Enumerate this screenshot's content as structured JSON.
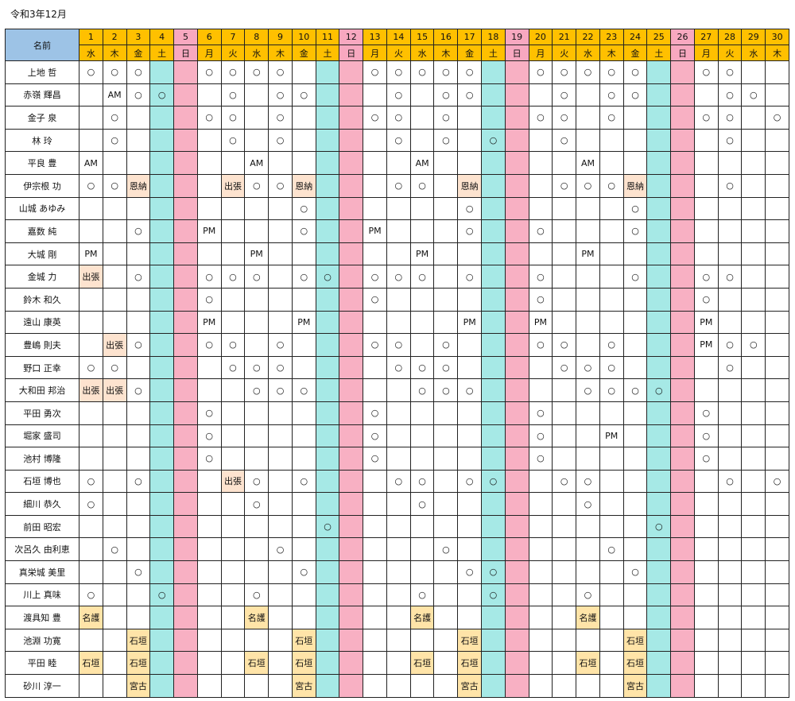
{
  "title": "令和3年12月",
  "name_header": "名前",
  "colors": {
    "weekday_header": "#ffc000",
    "sunday_header": "#f8a8c0",
    "saturday_column": "#a6e9e6",
    "sunday_column": "#f8b0c3",
    "tag_highlight": "#fde3cf",
    "name_header": "#9dc3e6"
  },
  "days": [
    {
      "d": "1",
      "w": "水"
    },
    {
      "d": "2",
      "w": "木"
    },
    {
      "d": "3",
      "w": "金"
    },
    {
      "d": "4",
      "w": "土"
    },
    {
      "d": "5",
      "w": "日"
    },
    {
      "d": "6",
      "w": "月"
    },
    {
      "d": "7",
      "w": "火"
    },
    {
      "d": "8",
      "w": "水"
    },
    {
      "d": "9",
      "w": "木"
    },
    {
      "d": "10",
      "w": "金"
    },
    {
      "d": "11",
      "w": "土"
    },
    {
      "d": "12",
      "w": "日"
    },
    {
      "d": "13",
      "w": "月"
    },
    {
      "d": "14",
      "w": "火"
    },
    {
      "d": "15",
      "w": "水"
    },
    {
      "d": "16",
      "w": "木"
    },
    {
      "d": "17",
      "w": "金"
    },
    {
      "d": "18",
      "w": "土"
    },
    {
      "d": "19",
      "w": "日"
    },
    {
      "d": "20",
      "w": "月"
    },
    {
      "d": "21",
      "w": "火"
    },
    {
      "d": "22",
      "w": "水"
    },
    {
      "d": "23",
      "w": "木"
    },
    {
      "d": "24",
      "w": "金"
    },
    {
      "d": "25",
      "w": "土"
    },
    {
      "d": "26",
      "w": "日"
    },
    {
      "d": "27",
      "w": "月"
    },
    {
      "d": "28",
      "w": "火"
    },
    {
      "d": "29",
      "w": "水"
    },
    {
      "d": "30",
      "w": "木"
    }
  ],
  "rows": [
    {
      "name": "上地 哲",
      "cells": [
        "○",
        "○",
        "○",
        "",
        "",
        "○",
        "○",
        "○",
        "○",
        "",
        "",
        "",
        "○",
        "○",
        "○",
        "○",
        "○",
        "",
        "",
        "○",
        "○",
        "○",
        "○",
        "○",
        "",
        "",
        "○",
        "○",
        "",
        ""
      ]
    },
    {
      "name": "赤嶺 輝昌",
      "cells": [
        "",
        "AM",
        "○",
        "○",
        "",
        "",
        "○",
        "",
        "○",
        "○",
        "",
        "",
        "",
        "○",
        "",
        "○",
        "○",
        "",
        "",
        "",
        "○",
        "",
        "○",
        "○",
        "",
        "",
        "",
        "○",
        "○",
        ""
      ]
    },
    {
      "name": "金子 泉",
      "cells": [
        "",
        "○",
        "",
        "",
        "",
        "○",
        "○",
        "",
        "○",
        "",
        "",
        "",
        "○",
        "○",
        "",
        "○",
        "",
        "",
        "",
        "○",
        "○",
        "",
        "○",
        "",
        "",
        "",
        "○",
        "○",
        "",
        "○"
      ]
    },
    {
      "name": "林 玲",
      "cells": [
        "",
        "○",
        "",
        "",
        "",
        "",
        "○",
        "",
        "○",
        "",
        "",
        "",
        "",
        "○",
        "",
        "○",
        "",
        "○",
        "",
        "",
        "○",
        "",
        "",
        "",
        "",
        "",
        "",
        "○",
        "",
        ""
      ]
    },
    {
      "name": "平良 豊",
      "cells": [
        "AM",
        "",
        "",
        "",
        "",
        "",
        "",
        "AM",
        "",
        "",
        "",
        "",
        "",
        "",
        "AM",
        "",
        "",
        "",
        "",
        "",
        "",
        "AM",
        "",
        "",
        "",
        "",
        "",
        "",
        "",
        ""
      ]
    },
    {
      "name": "伊宗根 功",
      "cells": [
        "○",
        "○",
        "恩納",
        "",
        "",
        "",
        "出張",
        "○",
        "○",
        "恩納",
        "",
        "",
        "",
        "○",
        "○",
        "",
        "恩納",
        "",
        "",
        "",
        "○",
        "○",
        "○",
        "恩納",
        "",
        "",
        "",
        "○",
        "",
        ""
      ]
    },
    {
      "name": "山城 あゆみ",
      "cells": [
        "",
        "",
        "",
        "",
        "",
        "",
        "",
        "",
        "",
        "○",
        "",
        "",
        "",
        "",
        "",
        "",
        "○",
        "",
        "",
        "",
        "",
        "",
        "",
        "○",
        "",
        "",
        "",
        "",
        "",
        ""
      ]
    },
    {
      "name": "嘉数 純",
      "cells": [
        "",
        "",
        "○",
        "",
        "",
        "PM",
        "",
        "",
        "",
        "○",
        "",
        "",
        "PM",
        "",
        "",
        "",
        "○",
        "",
        "",
        "○",
        "",
        "",
        "",
        "○",
        "",
        "",
        "",
        "",
        "",
        ""
      ]
    },
    {
      "name": "大城 剛",
      "cells": [
        "PM",
        "",
        "",
        "",
        "",
        "",
        "",
        "PM",
        "",
        "",
        "",
        "",
        "",
        "",
        "PM",
        "",
        "",
        "",
        "",
        "",
        "",
        "PM",
        "",
        "",
        "",
        "",
        "",
        "",
        "",
        ""
      ]
    },
    {
      "name": "金城 力",
      "cells": [
        "出張",
        "",
        "○",
        "",
        "",
        "○",
        "○",
        "○",
        "",
        "○",
        "○",
        "",
        "○",
        "○",
        "○",
        "",
        "○",
        "",
        "",
        "○",
        "",
        "",
        "",
        "○",
        "",
        "",
        "○",
        "○",
        "",
        ""
      ]
    },
    {
      "name": "鈴木 和久",
      "cells": [
        "",
        "",
        "",
        "",
        "",
        "○",
        "",
        "",
        "",
        "",
        "",
        "",
        "○",
        "",
        "",
        "",
        "",
        "",
        "",
        "○",
        "",
        "",
        "",
        "",
        "",
        "",
        "○",
        "",
        "",
        ""
      ]
    },
    {
      "name": "遠山 康英",
      "cells": [
        "",
        "",
        "",
        "",
        "",
        "PM",
        "",
        "",
        "",
        "PM",
        "",
        "",
        "",
        "",
        "",
        "",
        "PM",
        "",
        "",
        "PM",
        "",
        "",
        "",
        "",
        "",
        "",
        "PM",
        "",
        "",
        ""
      ]
    },
    {
      "name": "豊嶋 則夫",
      "cells": [
        "",
        "出張",
        "○",
        "",
        "",
        "○",
        "○",
        "",
        "○",
        "",
        "",
        "",
        "○",
        "○",
        "",
        "○",
        "",
        "",
        "",
        "○",
        "○",
        "",
        "○",
        "",
        "",
        "",
        "PM",
        "○",
        "○",
        ""
      ]
    },
    {
      "name": "野口 正幸",
      "cells": [
        "○",
        "○",
        "",
        "",
        "",
        "",
        "○",
        "○",
        "○",
        "",
        "",
        "",
        "",
        "○",
        "○",
        "○",
        "",
        "",
        "",
        "",
        "○",
        "○",
        "○",
        "",
        "",
        "",
        "",
        "○",
        "",
        ""
      ]
    },
    {
      "name": "大和田 邦治",
      "cells": [
        "出張",
        "出張",
        "○",
        "",
        "",
        "",
        "",
        "○",
        "○",
        "○",
        "",
        "",
        "",
        "",
        "○",
        "○",
        "○",
        "",
        "",
        "",
        "",
        "○",
        "○",
        "○",
        "○",
        "",
        "",
        "",
        "",
        ""
      ]
    },
    {
      "name": "平田 勇次",
      "cells": [
        "",
        "",
        "",
        "",
        "",
        "○",
        "",
        "",
        "",
        "",
        "",
        "",
        "○",
        "",
        "",
        "",
        "",
        "",
        "",
        "○",
        "",
        "",
        "",
        "",
        "",
        "",
        "○",
        "",
        "",
        ""
      ]
    },
    {
      "name": "堀家 盛司",
      "cells": [
        "",
        "",
        "",
        "",
        "",
        "○",
        "",
        "",
        "",
        "",
        "",
        "",
        "○",
        "",
        "",
        "",
        "",
        "",
        "",
        "○",
        "",
        "",
        "PM",
        "",
        "",
        "",
        "○",
        "",
        "",
        ""
      ]
    },
    {
      "name": "池村 博隆",
      "cells": [
        "",
        "",
        "",
        "",
        "",
        "○",
        "",
        "",
        "",
        "",
        "",
        "",
        "○",
        "",
        "",
        "",
        "",
        "",
        "",
        "○",
        "",
        "",
        "",
        "",
        "",
        "",
        "○",
        "",
        "",
        ""
      ]
    },
    {
      "name": "石垣 博也",
      "cells": [
        "○",
        "",
        "○",
        "",
        "",
        "",
        "出張",
        "○",
        "",
        "○",
        "",
        "",
        "",
        "○",
        "○",
        "",
        "○",
        "○",
        "",
        "",
        "○",
        "○",
        "",
        "",
        "",
        "",
        "",
        "○",
        "",
        "○"
      ]
    },
    {
      "name": "細川 恭久",
      "cells": [
        "○",
        "",
        "",
        "",
        "",
        "",
        "",
        "○",
        "",
        "",
        "",
        "",
        "",
        "",
        "○",
        "",
        "",
        "",
        "",
        "",
        "",
        "○",
        "",
        "",
        "",
        "",
        "",
        "",
        "",
        ""
      ]
    },
    {
      "name": "前田 昭宏",
      "cells": [
        "",
        "",
        "",
        "",
        "",
        "",
        "",
        "",
        "",
        "",
        "○",
        "",
        "",
        "",
        "",
        "",
        "",
        "",
        "",
        "",
        "",
        "",
        "",
        "",
        "○",
        "",
        "",
        "",
        "",
        ""
      ]
    },
    {
      "name": "次呂久 由利恵",
      "cells": [
        "",
        "○",
        "",
        "",
        "",
        "",
        "",
        "",
        "○",
        "",
        "",
        "",
        "",
        "",
        "",
        "○",
        "",
        "",
        "",
        "",
        "",
        "",
        "○",
        "",
        "",
        "",
        "",
        "",
        "",
        ""
      ]
    },
    {
      "name": "真栄城 美里",
      "cells": [
        "",
        "",
        "○",
        "",
        "",
        "",
        "",
        "",
        "",
        "○",
        "",
        "",
        "",
        "",
        "",
        "",
        "○",
        "○",
        "",
        "",
        "",
        "",
        "",
        "○",
        "",
        "",
        "",
        "",
        "",
        ""
      ]
    },
    {
      "name": "川上 真味",
      "cells": [
        "○",
        "",
        "",
        "○",
        "",
        "",
        "",
        "○",
        "",
        "",
        "",
        "",
        "",
        "",
        "○",
        "",
        "",
        "○",
        "",
        "",
        "",
        "○",
        "",
        "",
        "",
        "",
        "",
        "",
        "",
        ""
      ]
    },
    {
      "name": "渡具知 豊",
      "cells": [
        "名護",
        "",
        "",
        "",
        "",
        "",
        "",
        "名護",
        "",
        "",
        "",
        "",
        "",
        "",
        "名護",
        "",
        "",
        "",
        "",
        "",
        "",
        "名護",
        "",
        "",
        "",
        "",
        "",
        "",
        "",
        ""
      ]
    },
    {
      "name": "池淵 功寛",
      "cells": [
        "",
        "",
        "石垣",
        "",
        "",
        "",
        "",
        "",
        "",
        "石垣",
        "",
        "",
        "",
        "",
        "",
        "",
        "石垣",
        "",
        "",
        "",
        "",
        "",
        "",
        "石垣",
        "",
        "",
        "",
        "",
        "",
        ""
      ]
    },
    {
      "name": "平田 睦",
      "cells": [
        "石垣",
        "",
        "石垣",
        "",
        "",
        "",
        "",
        "石垣",
        "",
        "石垣",
        "",
        "",
        "",
        "",
        "石垣",
        "",
        "石垣",
        "",
        "",
        "",
        "",
        "石垣",
        "",
        "石垣",
        "",
        "",
        "",
        "",
        "",
        ""
      ]
    },
    {
      "name": "砂川 淳一",
      "cells": [
        "",
        "",
        "宮古",
        "",
        "",
        "",
        "",
        "",
        "",
        "宮古",
        "",
        "",
        "",
        "",
        "",
        "",
        "宮古",
        "",
        "",
        "",
        "",
        "",
        "",
        "宮古",
        "",
        "",
        "",
        "",
        "",
        ""
      ]
    }
  ]
}
